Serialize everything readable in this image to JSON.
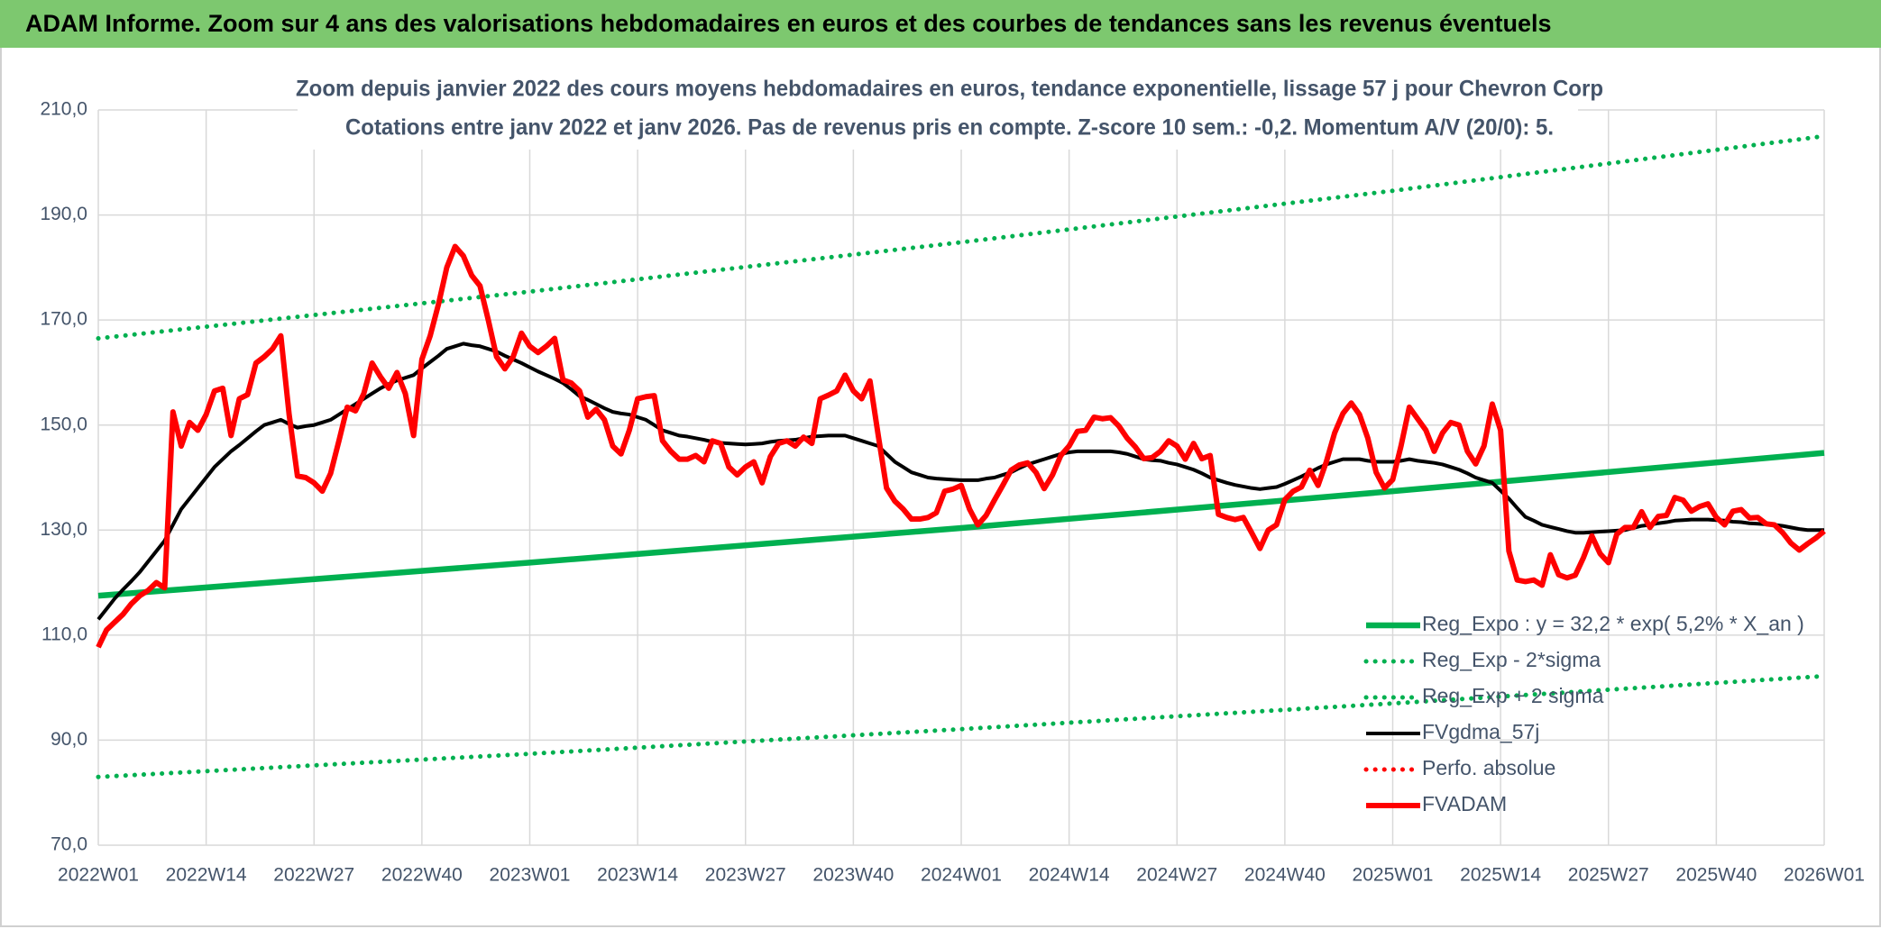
{
  "chart_data": {
    "type": "line",
    "header": "ADAM Informe. Zoom sur 4 ans des valorisations hebdomadaires en euros et des courbes de tendances sans les revenus éventuels",
    "title": "Zoom depuis janvier 2022 des cours moyens hebdomadaires en euros, tendance exponentielle, lissage 57 j pour Chevron Corp",
    "subtitle": "Cotations entre janv 2022 et janv 2026. Pas de revenus pris en compte. Z-score 10 sem.: -0,2. Momentum A/V (20/0): 5.",
    "categories": [
      "2022W01",
      null,
      null,
      null,
      null,
      null,
      null,
      null,
      null,
      null,
      null,
      null,
      null,
      "2022W14",
      null,
      null,
      null,
      null,
      null,
      null,
      null,
      null,
      null,
      null,
      null,
      null,
      "2022W27",
      null,
      null,
      null,
      null,
      null,
      null,
      null,
      null,
      null,
      null,
      null,
      null,
      "2022W40",
      null,
      null,
      null,
      null,
      null,
      null,
      null,
      null,
      null,
      null,
      null,
      null,
      "2023W01",
      null,
      null,
      null,
      null,
      null,
      null,
      null,
      null,
      null,
      null,
      null,
      null,
      "2023W14",
      null,
      null,
      null,
      null,
      null,
      null,
      null,
      null,
      null,
      null,
      null,
      null,
      "2023W27",
      null,
      null,
      null,
      null,
      null,
      null,
      null,
      null,
      null,
      null,
      null,
      null,
      "2023W40",
      null,
      null,
      null,
      null,
      null,
      null,
      null,
      null,
      null,
      null,
      null,
      null,
      "2024W01",
      null,
      null,
      null,
      null,
      null,
      null,
      null,
      null,
      null,
      null,
      null,
      null,
      "2024W14",
      null,
      null,
      null,
      null,
      null,
      null,
      null,
      null,
      null,
      null,
      null,
      null,
      "2024W27",
      null,
      null,
      null,
      null,
      null,
      null,
      null,
      null,
      null,
      null,
      null,
      null,
      "2024W40",
      null,
      null,
      null,
      null,
      null,
      null,
      null,
      null,
      null,
      null,
      null,
      null,
      "2025W01",
      null,
      null,
      null,
      null,
      null,
      null,
      null,
      null,
      null,
      null,
      null,
      null,
      "2025W14",
      null,
      null,
      null,
      null,
      null,
      null,
      null,
      null,
      null,
      null,
      null,
      null,
      "2025W27",
      null,
      null,
      null,
      null,
      null,
      null,
      null,
      null,
      null,
      null,
      null,
      null,
      "2025W40",
      null,
      null,
      null,
      null,
      null,
      null,
      null,
      null,
      null,
      null,
      null,
      null,
      "2026W01"
    ],
    "ylim": [
      70,
      210
    ],
    "yticks": [
      {
        "value": 70,
        "label": "70,0"
      },
      {
        "value": 90,
        "label": "90,0"
      },
      {
        "value": 110,
        "label": "110,0"
      },
      {
        "value": 130,
        "label": "130,0"
      },
      {
        "value": 150,
        "label": "150,0"
      },
      {
        "value": 170,
        "label": "170,0"
      },
      {
        "value": 190,
        "label": "190,0"
      },
      {
        "value": 210,
        "label": "210,0"
      }
    ],
    "grid": true,
    "legend": "lower right",
    "series": [
      {
        "name": "Reg_Expo : y = 32,2 * exp( 5,2% *  X_an )",
        "color": "#00b050",
        "style": "solid",
        "x": [
          "2022W01",
          "2023W01",
          "2024W01",
          "2025W01",
          "2026W01"
        ],
        "values": [
          117.5,
          123.8,
          130.4,
          137.4,
          144.7
        ]
      },
      {
        "name": "Reg_Exp - 2*sigma",
        "color": "#00b050",
        "style": "dotted",
        "x": [
          "2022W01",
          "2023W01",
          "2024W01",
          "2025W01",
          "2026W01"
        ],
        "values": [
          83,
          87.4,
          92.1,
          97,
          102.2
        ]
      },
      {
        "name": "Reg_Exp + 2 sigma",
        "color": "#00b050",
        "style": "dotted",
        "x": [
          "2022W01",
          "2023W01",
          "2024W01",
          "2025W01",
          "2026W01"
        ],
        "values": [
          166.5,
          175.4,
          184.8,
          194.6,
          205
        ]
      },
      {
        "name": "FVgdma_57j",
        "color": "#000000",
        "style": "solid",
        "values": [
          113,
          115,
          117,
          118.7,
          120.3,
          122,
          124,
          126,
          128,
          131,
          134,
          136,
          138,
          140,
          142,
          143.5,
          145,
          146.2,
          147.5,
          148.8,
          150,
          150.5,
          151,
          150.2,
          149.5,
          149.8,
          150,
          150.5,
          151,
          152,
          153,
          154,
          155,
          156,
          157,
          157.8,
          158.5,
          159,
          159.5,
          160.8,
          162,
          163.2,
          164.5,
          165,
          165.5,
          165.2,
          165,
          164.5,
          164,
          163.2,
          162.5,
          161.8,
          161,
          160.2,
          159.5,
          158.8,
          158,
          156.8,
          155.5,
          154.8,
          154,
          153.2,
          152.5,
          152.2,
          152,
          151.5,
          151,
          150,
          149,
          148.5,
          148,
          147.8,
          147.5,
          147.2,
          146.8,
          146.6,
          146.5,
          146.4,
          146.3,
          146.4,
          146.5,
          146.8,
          147,
          147.1,
          147.2,
          147.5,
          147.8,
          147.9,
          148,
          148,
          148,
          147.5,
          147,
          146.5,
          146,
          144.5,
          143,
          142,
          141,
          140.5,
          140,
          139.8,
          139.7,
          139.6,
          139.5,
          139.5,
          139.5,
          139.8,
          140,
          140.5,
          141,
          141.8,
          142.5,
          143,
          143.5,
          144,
          144.5,
          144.8,
          145,
          145,
          145,
          145,
          145,
          144.8,
          144.5,
          144,
          143.5,
          143.3,
          143.2,
          142.8,
          142.5,
          142,
          141.5,
          140.8,
          140,
          139.5,
          139,
          138.6,
          138.3,
          138,
          137.8,
          138,
          138.2,
          138.8,
          139.5,
          140.2,
          141,
          141.8,
          142.5,
          143,
          143.5,
          143.5,
          143.5,
          143.2,
          143,
          143,
          143,
          143.2,
          143.5,
          143.2,
          143,
          142.8,
          142.5,
          142,
          141.5,
          140.8,
          140,
          139.5,
          139,
          137.5,
          136,
          134.2,
          132.5,
          131.8,
          131,
          130.6,
          130.2,
          129.8,
          129.5,
          129.5,
          129.6,
          129.7,
          129.8,
          129.9,
          130,
          130.4,
          130.8,
          131,
          131.3,
          131.5,
          131.8,
          131.9,
          132,
          132,
          132,
          131.9,
          131.8,
          131.6,
          131.5,
          131.3,
          131.2,
          131.1,
          131,
          130.8,
          130.5,
          130.2,
          130,
          130,
          130
        ]
      },
      {
        "name": "Perfo. absolue",
        "color": "#ff0000",
        "style": "dotted"
      },
      {
        "name": "FVADAM",
        "color": "#ff0000",
        "style": "thick",
        "values": [
          107.7,
          111,
          112.5,
          114,
          116,
          117.5,
          118.5,
          120,
          119,
          152.5,
          146,
          150.5,
          149,
          152,
          156.5,
          157,
          148,
          155,
          155.8,
          161.8,
          163,
          164.5,
          167,
          152,
          140.3,
          140,
          139,
          137.4,
          140.8,
          147,
          153.4,
          152.7,
          156,
          161.8,
          159.2,
          157,
          160,
          156,
          148,
          162.5,
          167,
          173,
          180,
          184,
          182.2,
          178.5,
          176.5,
          170,
          163,
          160.7,
          163,
          167.5,
          165,
          163.8,
          165,
          166.5,
          158.6,
          158,
          156.5,
          151.5,
          153,
          151,
          146,
          144.5,
          149,
          155,
          155.4,
          155.6,
          147,
          145,
          143.5,
          143.5,
          144.2,
          143,
          147,
          146.5,
          142,
          140.5,
          142,
          143,
          139,
          144,
          146.5,
          147,
          146,
          147.7,
          146.5,
          155,
          155.7,
          156.5,
          159.5,
          156.5,
          155,
          158.4,
          148,
          138,
          135.5,
          134,
          132.1,
          132.1,
          132.4,
          133.3,
          137.4,
          137.8,
          138.5,
          134,
          131,
          132.8,
          135.7,
          138.5,
          141.4,
          142.4,
          142.8,
          141,
          137.9,
          140.5,
          144.2,
          146,
          148.8,
          149,
          151.5,
          151.2,
          151.4,
          149.8,
          147.5,
          145.8,
          143.6,
          143.8,
          145,
          147,
          146,
          143.5,
          146.5,
          143.6,
          144.2,
          133,
          132.4,
          132,
          132.4,
          129.5,
          126.5,
          130,
          131,
          135.8,
          137.4,
          138.2,
          141.4,
          138.5,
          143,
          148.5,
          152.2,
          154.2,
          152,
          147.5,
          141,
          138,
          139.6,
          146,
          153.4,
          151.2,
          149,
          145,
          148.5,
          150.5,
          150,
          145,
          142.6,
          146,
          154,
          149,
          126,
          120.5,
          120.2,
          120.5,
          119.5,
          125.3,
          121.5,
          120.9,
          121.4,
          124.8,
          128.9,
          125.5,
          123.8,
          129.2,
          130.5,
          130.5,
          133.5,
          130.5,
          132.6,
          132.8,
          136.2,
          135.7,
          133.6,
          134.5,
          135,
          132.4,
          131,
          133.6,
          133.9,
          132.3,
          132.4,
          131.2,
          131,
          129.5,
          127.5,
          126.2,
          127.4,
          128.5,
          129.8
        ]
      }
    ]
  }
}
